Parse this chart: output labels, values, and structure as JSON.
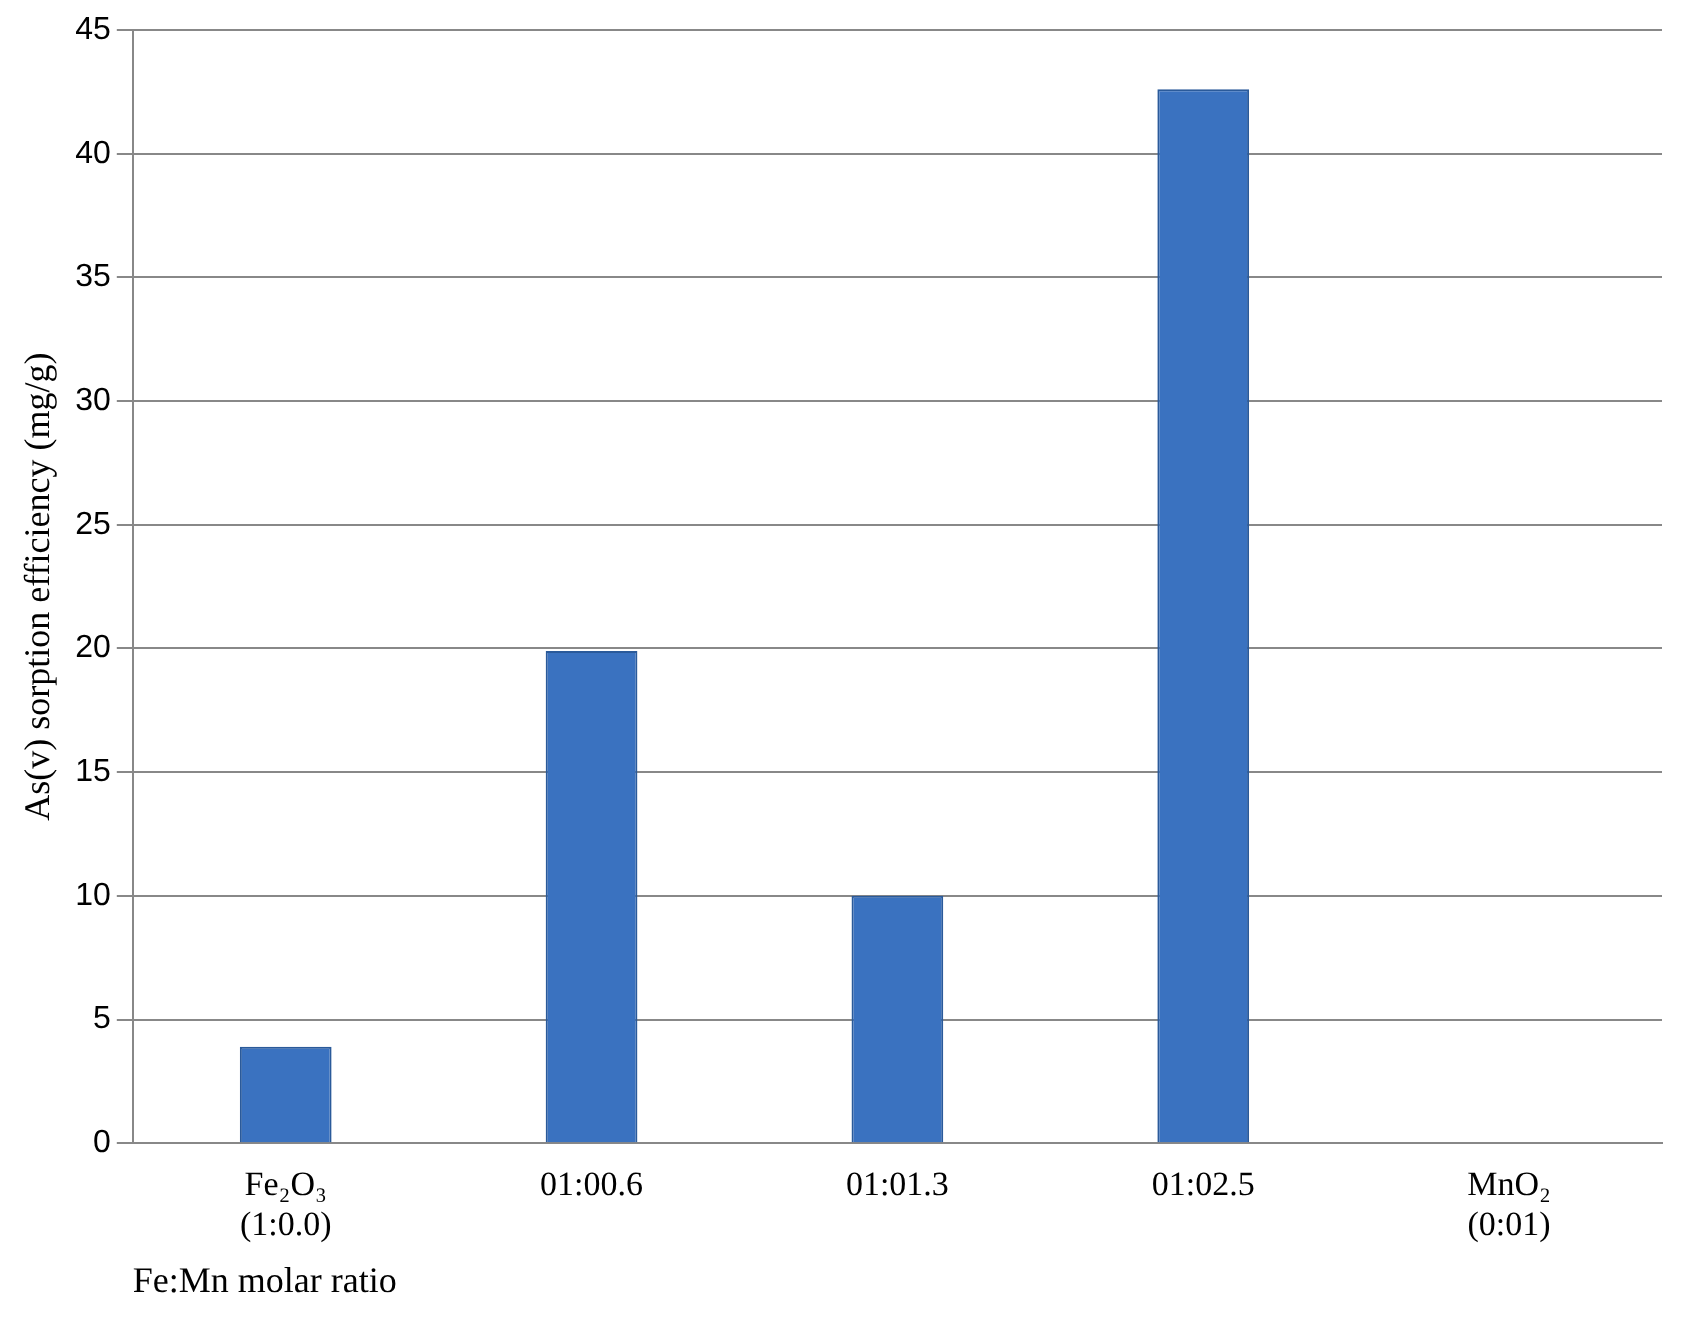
{
  "chart_data": {
    "type": "bar",
    "xlabel": "Fe:Mn molar ratio",
    "ylabel": "As(v) sorption efficiency (mg/g)",
    "categories": [
      "Fe₂O₃\n(1:0.0)",
      "01:00.6",
      "01:01.3",
      "01:02.5",
      "MnO₂\n(0:01)"
    ],
    "values": [
      3.9,
      19.9,
      10,
      42.6,
      0
    ],
    "color": "#3a72c0",
    "ylim": [
      0,
      45
    ],
    "yticks": [
      0,
      5,
      10,
      15,
      20,
      25,
      30,
      35,
      40,
      45
    ],
    "grid": "y",
    "legend": false
  }
}
